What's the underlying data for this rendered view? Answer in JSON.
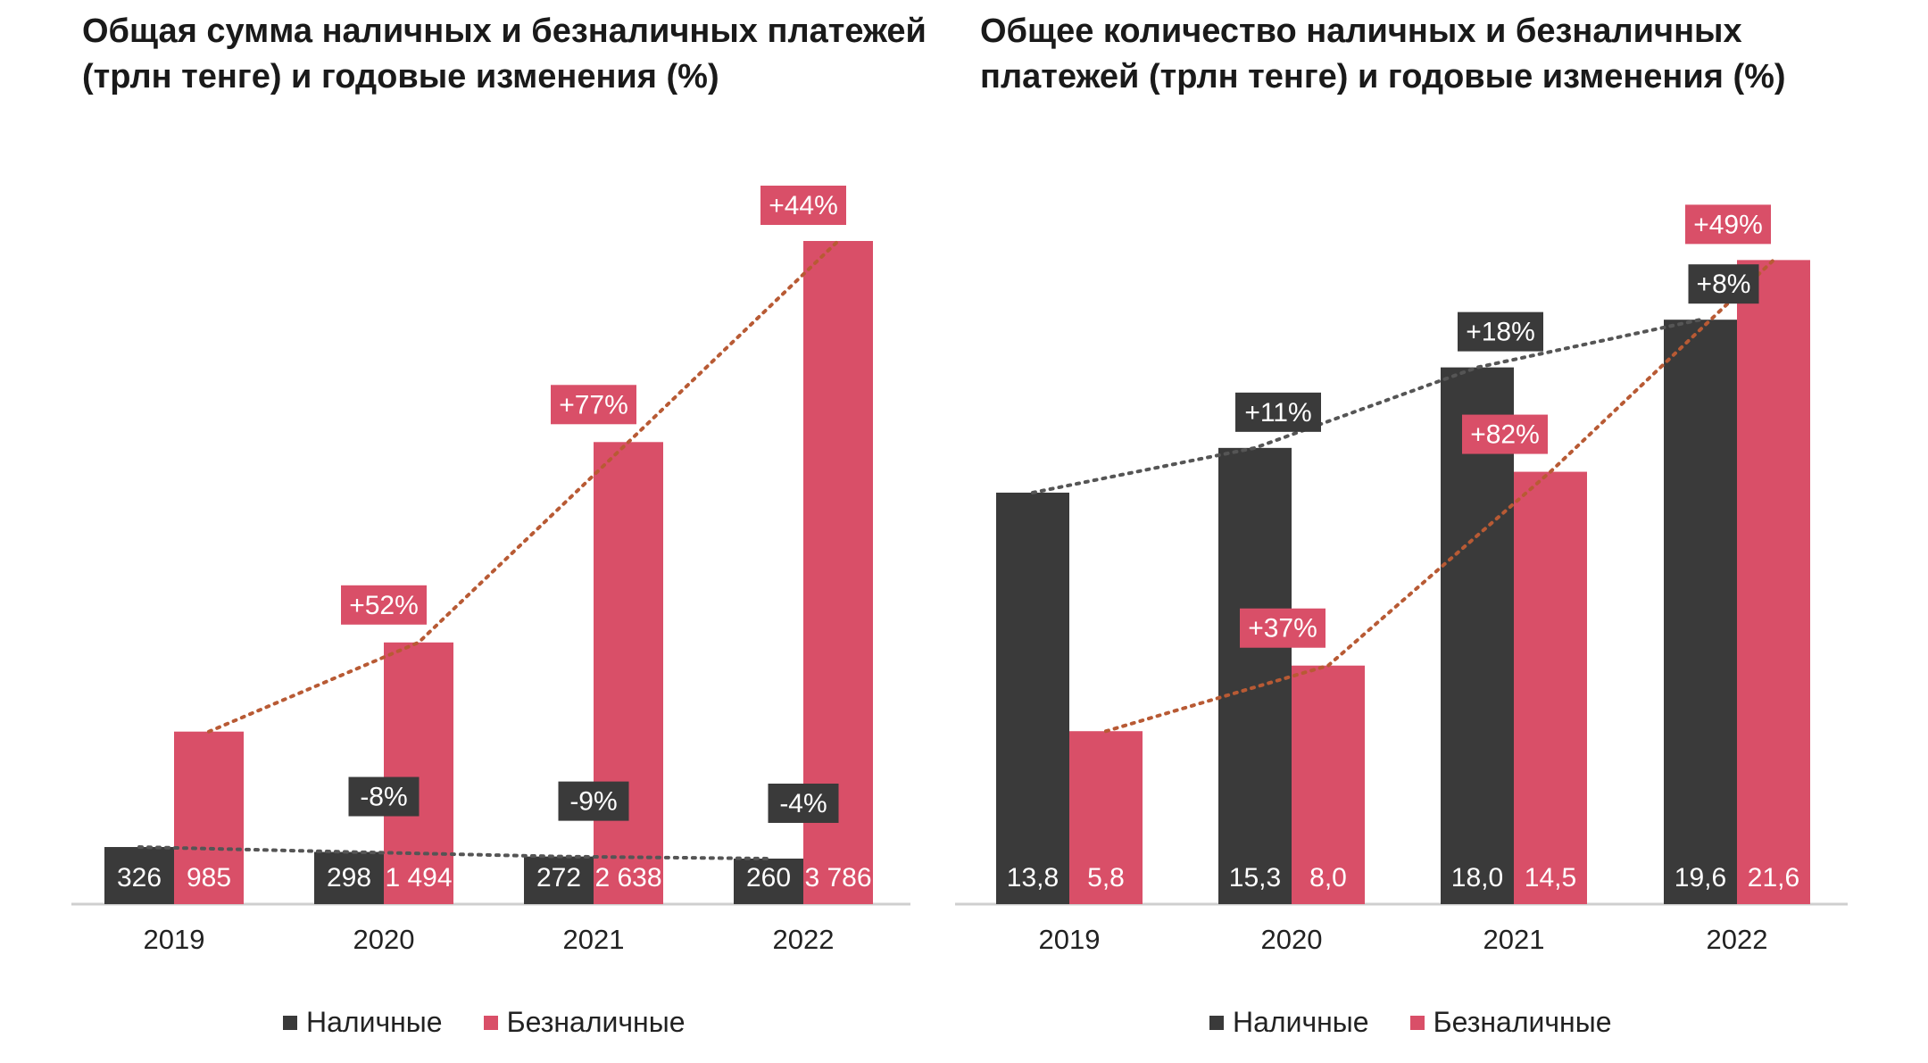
{
  "colors": {
    "cash": "#3a3a3a",
    "noncash": "#d94f68",
    "axis": "#cfcfcf",
    "trend_noncash": "#b85a34",
    "trend_cash": "#555555"
  },
  "charts": [
    {
      "title": "Общая сумма наличных и безналичных платежей (трлн тенге) и годовые изменения (%)",
      "legend": [
        "Наличные",
        "Безналичные"
      ]
    },
    {
      "title": "Общее количество наличных и безналичных платежей (трлн тенге) и годовые изменения (%)",
      "legend": [
        "Наличные",
        "Безналичные"
      ]
    }
  ],
  "chart_data": [
    {
      "type": "bar",
      "title": "Общая сумма наличных и безналичных платежей (трлн тенге) и годовые изменения (%)",
      "categories": [
        "2019",
        "2020",
        "2021",
        "2022"
      ],
      "series": [
        {
          "name": "Наличные",
          "values": [
            326,
            298,
            272,
            260
          ],
          "labels": [
            "326",
            "298",
            "272",
            "260"
          ],
          "changes": [
            null,
            "-8%",
            "-9%",
            "-4%"
          ]
        },
        {
          "name": "Безналичные",
          "values": [
            985,
            1494,
            2638,
            3786
          ],
          "labels": [
            "985",
            "1 494",
            "2 638",
            "3 786"
          ],
          "changes": [
            null,
            "+52%",
            "+77%",
            "+44%"
          ]
        }
      ],
      "ylim": [
        0,
        4000
      ],
      "legend_position": "bottom",
      "grid": false
    },
    {
      "type": "bar",
      "title": "Общее количество наличных и безналичных платежей (трлн тенге) и годовые изменения (%)",
      "categories": [
        "2019",
        "2020",
        "2021",
        "2022"
      ],
      "series": [
        {
          "name": "Наличные",
          "values": [
            13.8,
            15.3,
            18.0,
            19.6
          ],
          "labels": [
            "13,8",
            "15,3",
            "18,0",
            "19,6"
          ],
          "changes": [
            null,
            "+11%",
            "+18%",
            "+8%"
          ]
        },
        {
          "name": "Безналичные",
          "values": [
            5.8,
            8.0,
            14.5,
            21.6
          ],
          "labels": [
            "5,8",
            "8,0",
            "14,5",
            "21,6"
          ],
          "changes": [
            null,
            "+37%",
            "+82%",
            "+49%"
          ]
        }
      ],
      "ylim": [
        0,
        22
      ],
      "legend_position": "bottom",
      "grid": false
    }
  ]
}
